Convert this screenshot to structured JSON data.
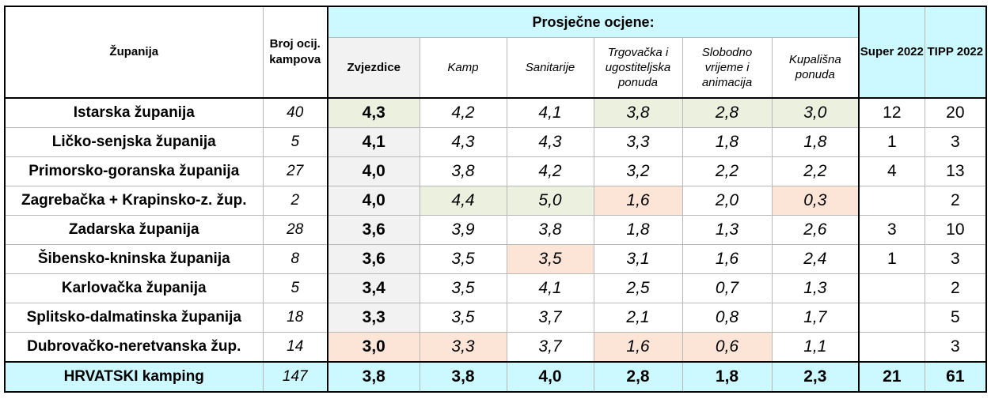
{
  "headers": {
    "county": "Županija",
    "count": "Broj ocij. kampova",
    "group": "Prosječne ocjene:",
    "stars": "Zvjezdice",
    "camp": "Kamp",
    "sanitary": "Sanitarije",
    "trade": "Trgovačka i ugostiteljska ponuda",
    "leisure": "Slobodno vrijeme i animacija",
    "bathing": "Kupališna ponuda",
    "super": "Super 2022",
    "tipp": "TIPP 2022"
  },
  "rows": [
    {
      "county": "Istarska županija",
      "count": "40",
      "stars": "4,3",
      "camp": "4,2",
      "sanitary": "4,1",
      "trade": "3,8",
      "leisure": "2,8",
      "bathing": "3,0",
      "super": "12",
      "tipp": "20"
    },
    {
      "county": "Ličko-senjska županija",
      "count": "5",
      "stars": "4,1",
      "camp": "4,3",
      "sanitary": "4,3",
      "trade": "3,3",
      "leisure": "1,8",
      "bathing": "1,8",
      "super": "1",
      "tipp": "3"
    },
    {
      "county": "Primorsko-goranska županija",
      "count": "27",
      "stars": "4,0",
      "camp": "3,8",
      "sanitary": "4,2",
      "trade": "3,2",
      "leisure": "2,2",
      "bathing": "2,2",
      "super": "4",
      "tipp": "13"
    },
    {
      "county": "Zagrebačka + Krapinsko-z. žup.",
      "count": "2",
      "stars": "4,0",
      "camp": "4,4",
      "sanitary": "5,0",
      "trade": "1,6",
      "leisure": "2,0",
      "bathing": "0,3",
      "super": "",
      "tipp": "2"
    },
    {
      "county": "Zadarska županija",
      "count": "28",
      "stars": "3,6",
      "camp": "3,9",
      "sanitary": "3,8",
      "trade": "1,8",
      "leisure": "1,3",
      "bathing": "2,6",
      "super": "3",
      "tipp": "10"
    },
    {
      "county": "Šibensko-kninska županija",
      "count": "8",
      "stars": "3,6",
      "camp": "3,5",
      "sanitary": "3,5",
      "trade": "3,1",
      "leisure": "1,6",
      "bathing": "2,4",
      "super": "1",
      "tipp": "3"
    },
    {
      "county": "Karlovačka županija",
      "count": "5",
      "stars": "3,4",
      "camp": "3,5",
      "sanitary": "4,1",
      "trade": "2,5",
      "leisure": "0,7",
      "bathing": "1,3",
      "super": "",
      "tipp": "2"
    },
    {
      "county": "Splitsko-dalmatinska županija",
      "count": "18",
      "stars": "3,3",
      "camp": "3,5",
      "sanitary": "3,7",
      "trade": "2,1",
      "leisure": "0,8",
      "bathing": "1,7",
      "super": "",
      "tipp": "5"
    },
    {
      "county": "Dubrovačko-neretvanska žup.",
      "count": "14",
      "stars": "3,0",
      "camp": "3,3",
      "sanitary": "3,7",
      "trade": "1,6",
      "leisure": "0,6",
      "bathing": "1,1",
      "super": "",
      "tipp": "3"
    }
  ],
  "total": {
    "county": "HRVATSKI kamping",
    "count": "147",
    "stars": "3,8",
    "camp": "3,8",
    "sanitary": "4,0",
    "trade": "2,8",
    "leisure": "1,8",
    "bathing": "2,3",
    "super": "21",
    "tipp": "61"
  },
  "colors": {
    "header_cyan": "#ccf9ff",
    "highlight_green": "#ebf1de",
    "highlight_peach": "#fce4d6",
    "stars_column_gray": "#f2f2f2"
  }
}
